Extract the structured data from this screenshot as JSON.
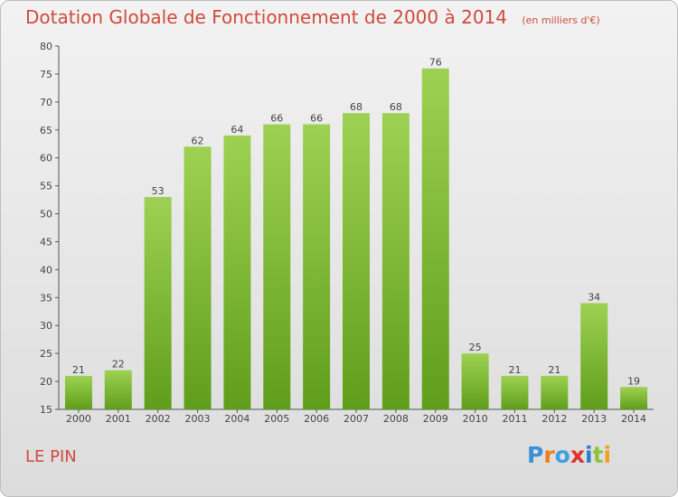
{
  "chart_data": {
    "type": "bar",
    "title": "Dotation Globale de Fonctionnement de 2000 à 2014",
    "subtitle": "(en milliers d'€)",
    "categories": [
      "2000",
      "2001",
      "2002",
      "2003",
      "2004",
      "2005",
      "2006",
      "2007",
      "2008",
      "2009",
      "2010",
      "2011",
      "2012",
      "2013",
      "2014"
    ],
    "values": [
      21,
      22,
      53,
      62,
      64,
      66,
      66,
      68,
      68,
      76,
      25,
      21,
      21,
      34,
      19
    ],
    "ylim": [
      15,
      80
    ],
    "yticks": [
      "15",
      "20",
      "25",
      "30",
      "35",
      "40",
      "45",
      "50",
      "55",
      "60",
      "65",
      "70",
      "75",
      "80"
    ],
    "grid": false,
    "bar_color_top": "#9ed153",
    "bar_color_bottom": "#5f9e1a"
  },
  "commune": "LE PIN",
  "logo": {
    "text": "Proxiti",
    "colors": [
      "#3a8fd6",
      "#f07d1e",
      "#3aa0de",
      "#e0312a",
      "#2c7ec8",
      "#8bc43f",
      "#f0a21e"
    ]
  }
}
